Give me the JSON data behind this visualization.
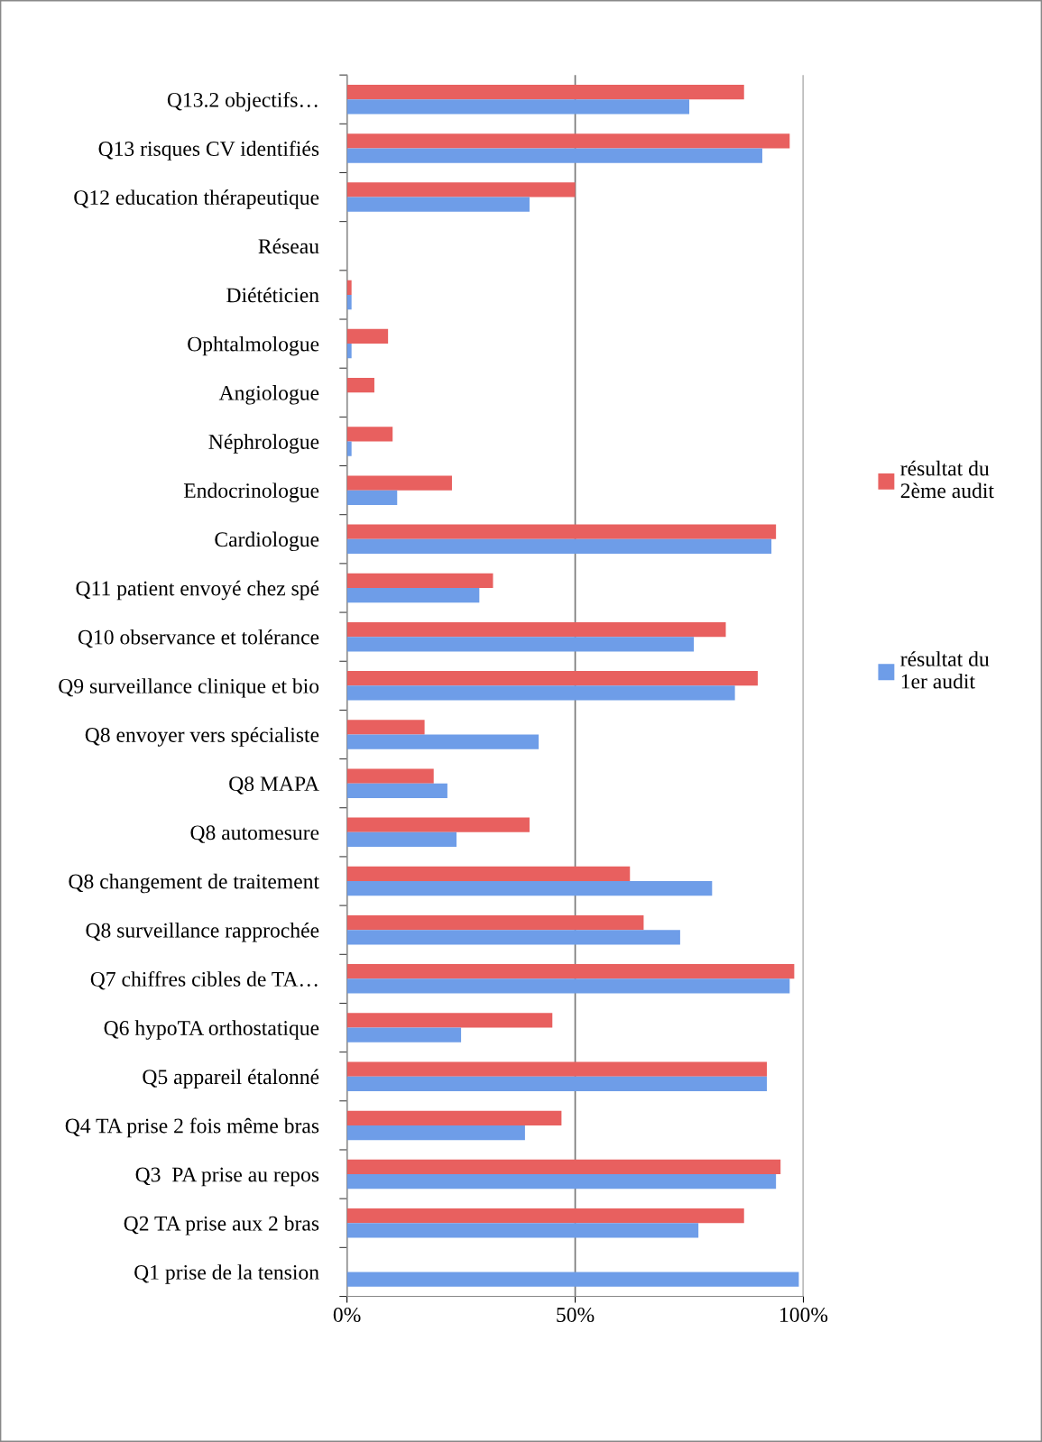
{
  "chart_data": {
    "type": "bar",
    "orientation": "horizontal",
    "categories": [
      "Q13.2 objectifs…",
      "Q13 risques CV identifiés",
      "Q12 education thérapeutique",
      "Réseau",
      "Diététicien",
      "Ophtalmologue",
      "Angiologue",
      "Néphrologue",
      "Endocrinologue",
      "Cardiologue",
      "Q11 patient envoyé chez spé",
      "Q10 observance et tolérance",
      "Q9 surveillance clinique et bio",
      "Q8 envoyer vers spécialiste",
      "Q8 MAPA",
      "Q8 automesure",
      "Q8 changement de traitement",
      "Q8 surveillance rapprochée",
      "Q7 chiffres cibles de TA…",
      "Q6 hypoTA orthostatique",
      "Q5 appareil étalonné",
      "Q4 TA prise 2 fois même bras",
      "Q3  PA prise au repos",
      "Q2 TA prise aux 2 bras",
      "Q1 prise de la tension"
    ],
    "series": [
      {
        "name": "résultat du\n2ème audit",
        "color": "#e8605f",
        "values": [
          87,
          97,
          50,
          0,
          1,
          9,
          6,
          10,
          23,
          94,
          32,
          83,
          90,
          17,
          19,
          40,
          62,
          65,
          98,
          45,
          92,
          47,
          95,
          87,
          null
        ]
      },
      {
        "name": "résultat du\n1er audit",
        "color": "#6e9de8",
        "values": [
          75,
          91,
          40,
          0,
          1,
          1,
          0,
          1,
          11,
          93,
          29,
          76,
          85,
          42,
          22,
          24,
          80,
          73,
          97,
          25,
          92,
          39,
          94,
          77,
          99
        ]
      }
    ],
    "xlim": [
      0,
      100
    ],
    "xticks": [
      {
        "value": 0,
        "label": "0%"
      },
      {
        "value": 50,
        "label": "50%"
      },
      {
        "value": 100,
        "label": "100%"
      }
    ],
    "grid": "x",
    "legend": "right"
  }
}
